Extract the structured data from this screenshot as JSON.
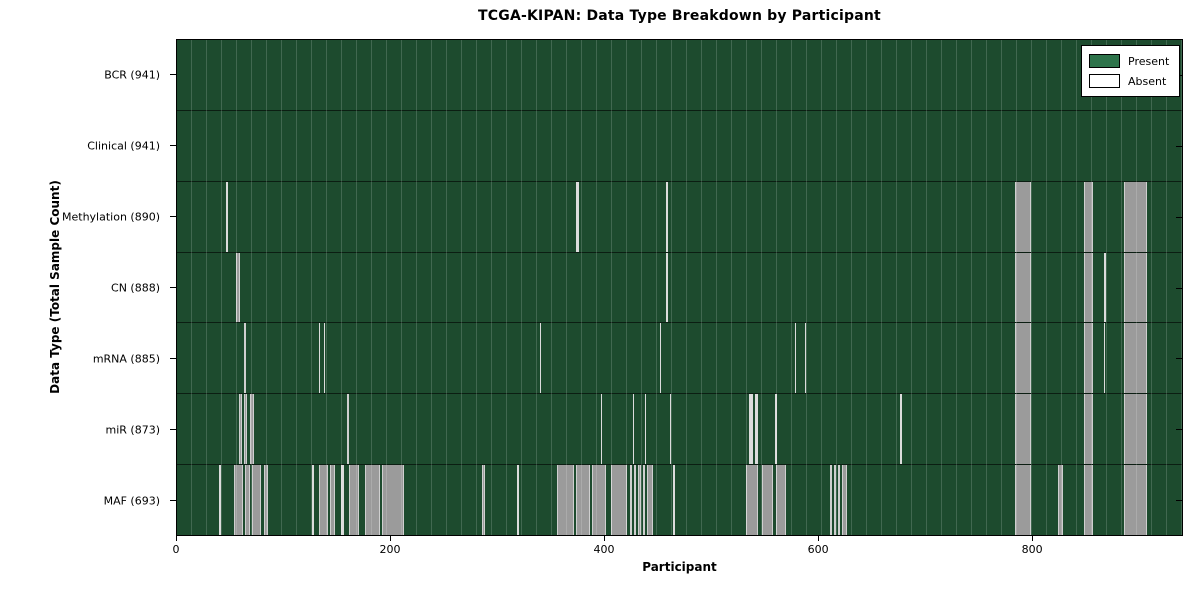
{
  "title": "TCGA-KIPAN: Data Type Breakdown by Participant",
  "xlabel": "Participant",
  "ylabel": "Data Type (Total Sample Count)",
  "legend": {
    "present_label": "Present",
    "absent_label": "Absent"
  },
  "colors": {
    "present_fill": "#1d4b2e",
    "legend_present": "#2d734a",
    "absent_band": "#9b9b9b",
    "absent_thin_line": "#dcdcdc",
    "background": "#ffffff"
  },
  "chart_data": {
    "type": "heatmap",
    "title": "TCGA-KIPAN: Data Type Breakdown by Participant",
    "xlabel": "Participant",
    "ylabel": "Data Type (Total Sample Count)",
    "x_max": 941,
    "x_ticks": [
      0,
      200,
      400,
      600,
      800
    ],
    "x_tick_labels": [
      "0",
      "200",
      "400",
      "600",
      "800"
    ],
    "legend_position": "upper right",
    "cell_states": [
      "Present",
      "Absent"
    ],
    "rows": [
      {
        "name": "BCR",
        "label": "BCR (941)",
        "total": 941,
        "absent_count": 0,
        "absent_runs": []
      },
      {
        "name": "Clinical",
        "label": "Clinical (941)",
        "total": 941,
        "absent_count": 0,
        "absent_runs": []
      },
      {
        "name": "Methylation",
        "label": "Methylation (890)",
        "total": 890,
        "absent_count": 51,
        "absent_runs": [
          [
            46,
            48,
            "w"
          ],
          [
            374,
            376,
            "w"
          ],
          [
            458,
            460,
            "w"
          ],
          [
            785,
            800,
            "g"
          ],
          [
            849,
            858,
            "g"
          ],
          [
            887,
            908,
            "g"
          ]
        ]
      },
      {
        "name": "CN",
        "label": "CN (888)",
        "total": 888,
        "absent_count": 53,
        "absent_runs": [
          [
            55,
            59,
            "g"
          ],
          [
            458,
            460,
            "w"
          ],
          [
            785,
            800,
            "g"
          ],
          [
            849,
            858,
            "g"
          ],
          [
            868,
            870,
            "w"
          ],
          [
            887,
            908,
            "g"
          ]
        ]
      },
      {
        "name": "mRNA",
        "label": "mRNA (885)",
        "total": 885,
        "absent_count": 56,
        "absent_runs": [
          [
            63,
            65,
            "g"
          ],
          [
            133,
            134,
            "w"
          ],
          [
            138,
            139,
            "w"
          ],
          [
            340,
            341,
            "w"
          ],
          [
            452,
            453,
            "w"
          ],
          [
            579,
            580,
            "w"
          ],
          [
            588,
            589,
            "w"
          ],
          [
            785,
            800,
            "g"
          ],
          [
            849,
            858,
            "g"
          ],
          [
            868,
            869,
            "w"
          ],
          [
            887,
            908,
            "g"
          ]
        ]
      },
      {
        "name": "miR",
        "label": "miR (873)",
        "total": 873,
        "absent_count": 68,
        "absent_runs": [
          [
            58,
            61,
            "g"
          ],
          [
            63,
            66,
            "g"
          ],
          [
            68,
            72,
            "g"
          ],
          [
            159,
            161,
            "g"
          ],
          [
            397,
            398,
            "w"
          ],
          [
            427,
            428,
            "w"
          ],
          [
            438,
            439,
            "w"
          ],
          [
            462,
            463,
            "w"
          ],
          [
            536,
            539,
            "w"
          ],
          [
            541,
            544,
            "w"
          ],
          [
            560,
            562,
            "w"
          ],
          [
            677,
            679,
            "w"
          ],
          [
            785,
            800,
            "g"
          ],
          [
            849,
            858,
            "g"
          ],
          [
            887,
            908,
            "g"
          ]
        ]
      },
      {
        "name": "MAF",
        "label": "MAF (693)",
        "total": 693,
        "absent_count": 248,
        "absent_runs": [
          [
            39,
            41,
            "w"
          ],
          [
            53,
            62,
            "g"
          ],
          [
            64,
            68,
            "g"
          ],
          [
            70,
            79,
            "g"
          ],
          [
            81,
            85,
            "g"
          ],
          [
            126,
            128,
            "w"
          ],
          [
            133,
            141,
            "g"
          ],
          [
            143,
            148,
            "g"
          ],
          [
            154,
            156,
            "w"
          ],
          [
            161,
            170,
            "g"
          ],
          [
            176,
            190,
            "g"
          ],
          [
            192,
            213,
            "g"
          ],
          [
            286,
            288,
            "g"
          ],
          [
            318,
            320,
            "w"
          ],
          [
            356,
            372,
            "g"
          ],
          [
            374,
            387,
            "g"
          ],
          [
            389,
            402,
            "g"
          ],
          [
            406,
            421,
            "g"
          ],
          [
            424,
            426,
            "g"
          ],
          [
            428,
            430,
            "g"
          ],
          [
            432,
            434,
            "g"
          ],
          [
            436,
            438,
            "g"
          ],
          [
            440,
            446,
            "g"
          ],
          [
            464,
            466,
            "w"
          ],
          [
            533,
            544,
            "g"
          ],
          [
            548,
            558,
            "g"
          ],
          [
            561,
            570,
            "g"
          ],
          [
            611,
            613,
            "g"
          ],
          [
            615,
            617,
            "g"
          ],
          [
            619,
            621,
            "g"
          ],
          [
            623,
            627,
            "g"
          ],
          [
            785,
            800,
            "g"
          ],
          [
            825,
            830,
            "g"
          ],
          [
            849,
            858,
            "g"
          ],
          [
            887,
            908,
            "g"
          ]
        ]
      }
    ]
  }
}
